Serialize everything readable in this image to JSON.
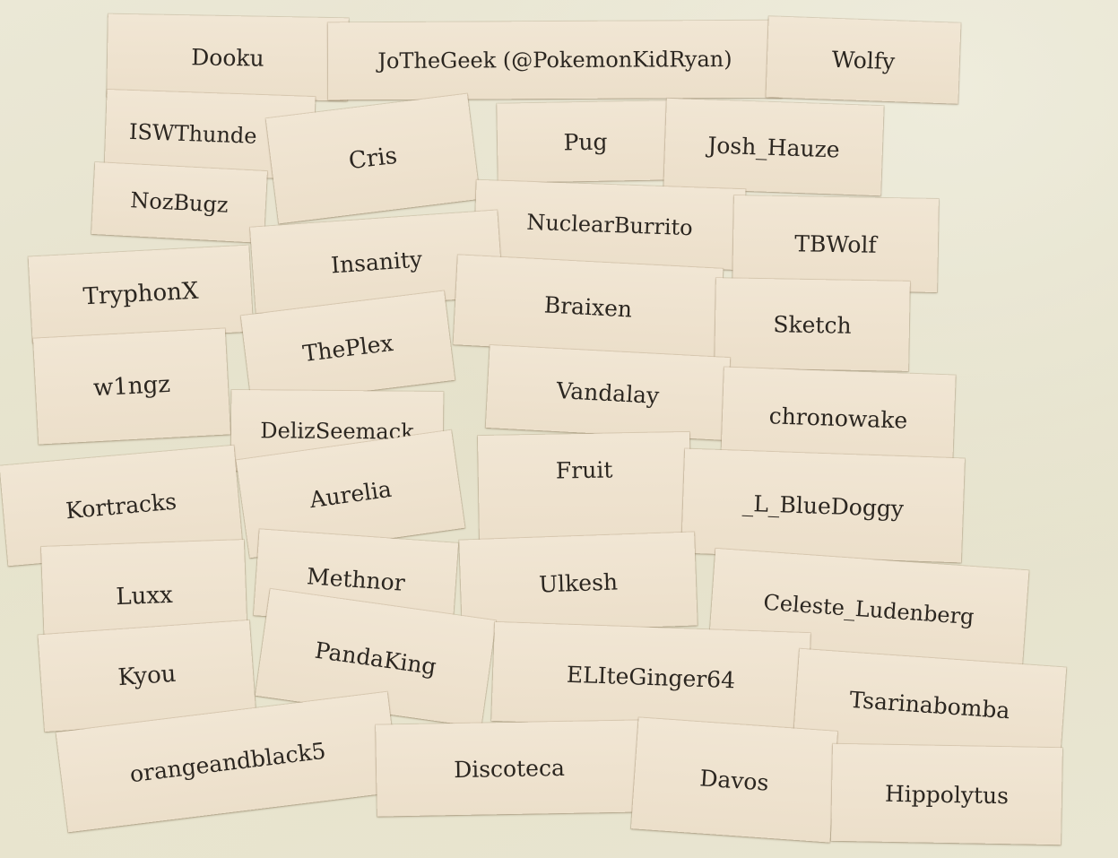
{
  "photo": {
    "subject": "paper slips with names on a table",
    "slips": [
      {
        "id": "dooku",
        "text": "Dooku"
      },
      {
        "id": "jothegeek",
        "text": "JoTheGeek (@PokemonKidRyan)"
      },
      {
        "id": "wolfy",
        "text": "Wolfy"
      },
      {
        "id": "iswthunder",
        "text": "ISWThunde"
      },
      {
        "id": "cris",
        "text": "Cris"
      },
      {
        "id": "pug",
        "text": "Pug"
      },
      {
        "id": "josh-hauze",
        "text": "Josh_Hauze"
      },
      {
        "id": "nozbugz",
        "text": "NozBugz"
      },
      {
        "id": "nuclearburrito",
        "text": "NuclearBurrito"
      },
      {
        "id": "tbwolf",
        "text": "TBWolf"
      },
      {
        "id": "tryphonx",
        "text": "TryphonX"
      },
      {
        "id": "insanity",
        "text": "Insanity"
      },
      {
        "id": "braixen",
        "text": "Braixen"
      },
      {
        "id": "sketch",
        "text": "Sketch"
      },
      {
        "id": "w1ngz",
        "text": "w1ngz"
      },
      {
        "id": "theplex",
        "text": "ThePlex"
      },
      {
        "id": "vandalay",
        "text": "Vandalay"
      },
      {
        "id": "chronowake",
        "text": "chronowake"
      },
      {
        "id": "delizseemack",
        "text": "DelizSeemack"
      },
      {
        "id": "kortracks",
        "text": "Kortracks"
      },
      {
        "id": "aurelia",
        "text": "Aurelia"
      },
      {
        "id": "fruit",
        "text": "Fruit"
      },
      {
        "id": "l-bluedoggy",
        "text": "_L_BlueDoggy"
      },
      {
        "id": "luxx",
        "text": "Luxx"
      },
      {
        "id": "methnor",
        "text": "Methnor"
      },
      {
        "id": "ulkesh",
        "text": "Ulkesh"
      },
      {
        "id": "celeste-ludenberg",
        "text": "Celeste_Ludenberg"
      },
      {
        "id": "kyou",
        "text": "Kyou"
      },
      {
        "id": "pandaking",
        "text": "PandaKing"
      },
      {
        "id": "eliteginger64",
        "text": "ELIteGinger64"
      },
      {
        "id": "tsarinabomba",
        "text": "Tsarinabomba"
      },
      {
        "id": "orangeandblack5",
        "text": "orangeandblack5"
      },
      {
        "id": "discoteca",
        "text": "Discoteca"
      },
      {
        "id": "davos",
        "text": "Davos"
      },
      {
        "id": "hippolytus",
        "text": "Hippolytus"
      }
    ]
  },
  "colors": {
    "table": "#e6e2cc",
    "paper": "#eee2ce",
    "ink": "#2b2620"
  }
}
